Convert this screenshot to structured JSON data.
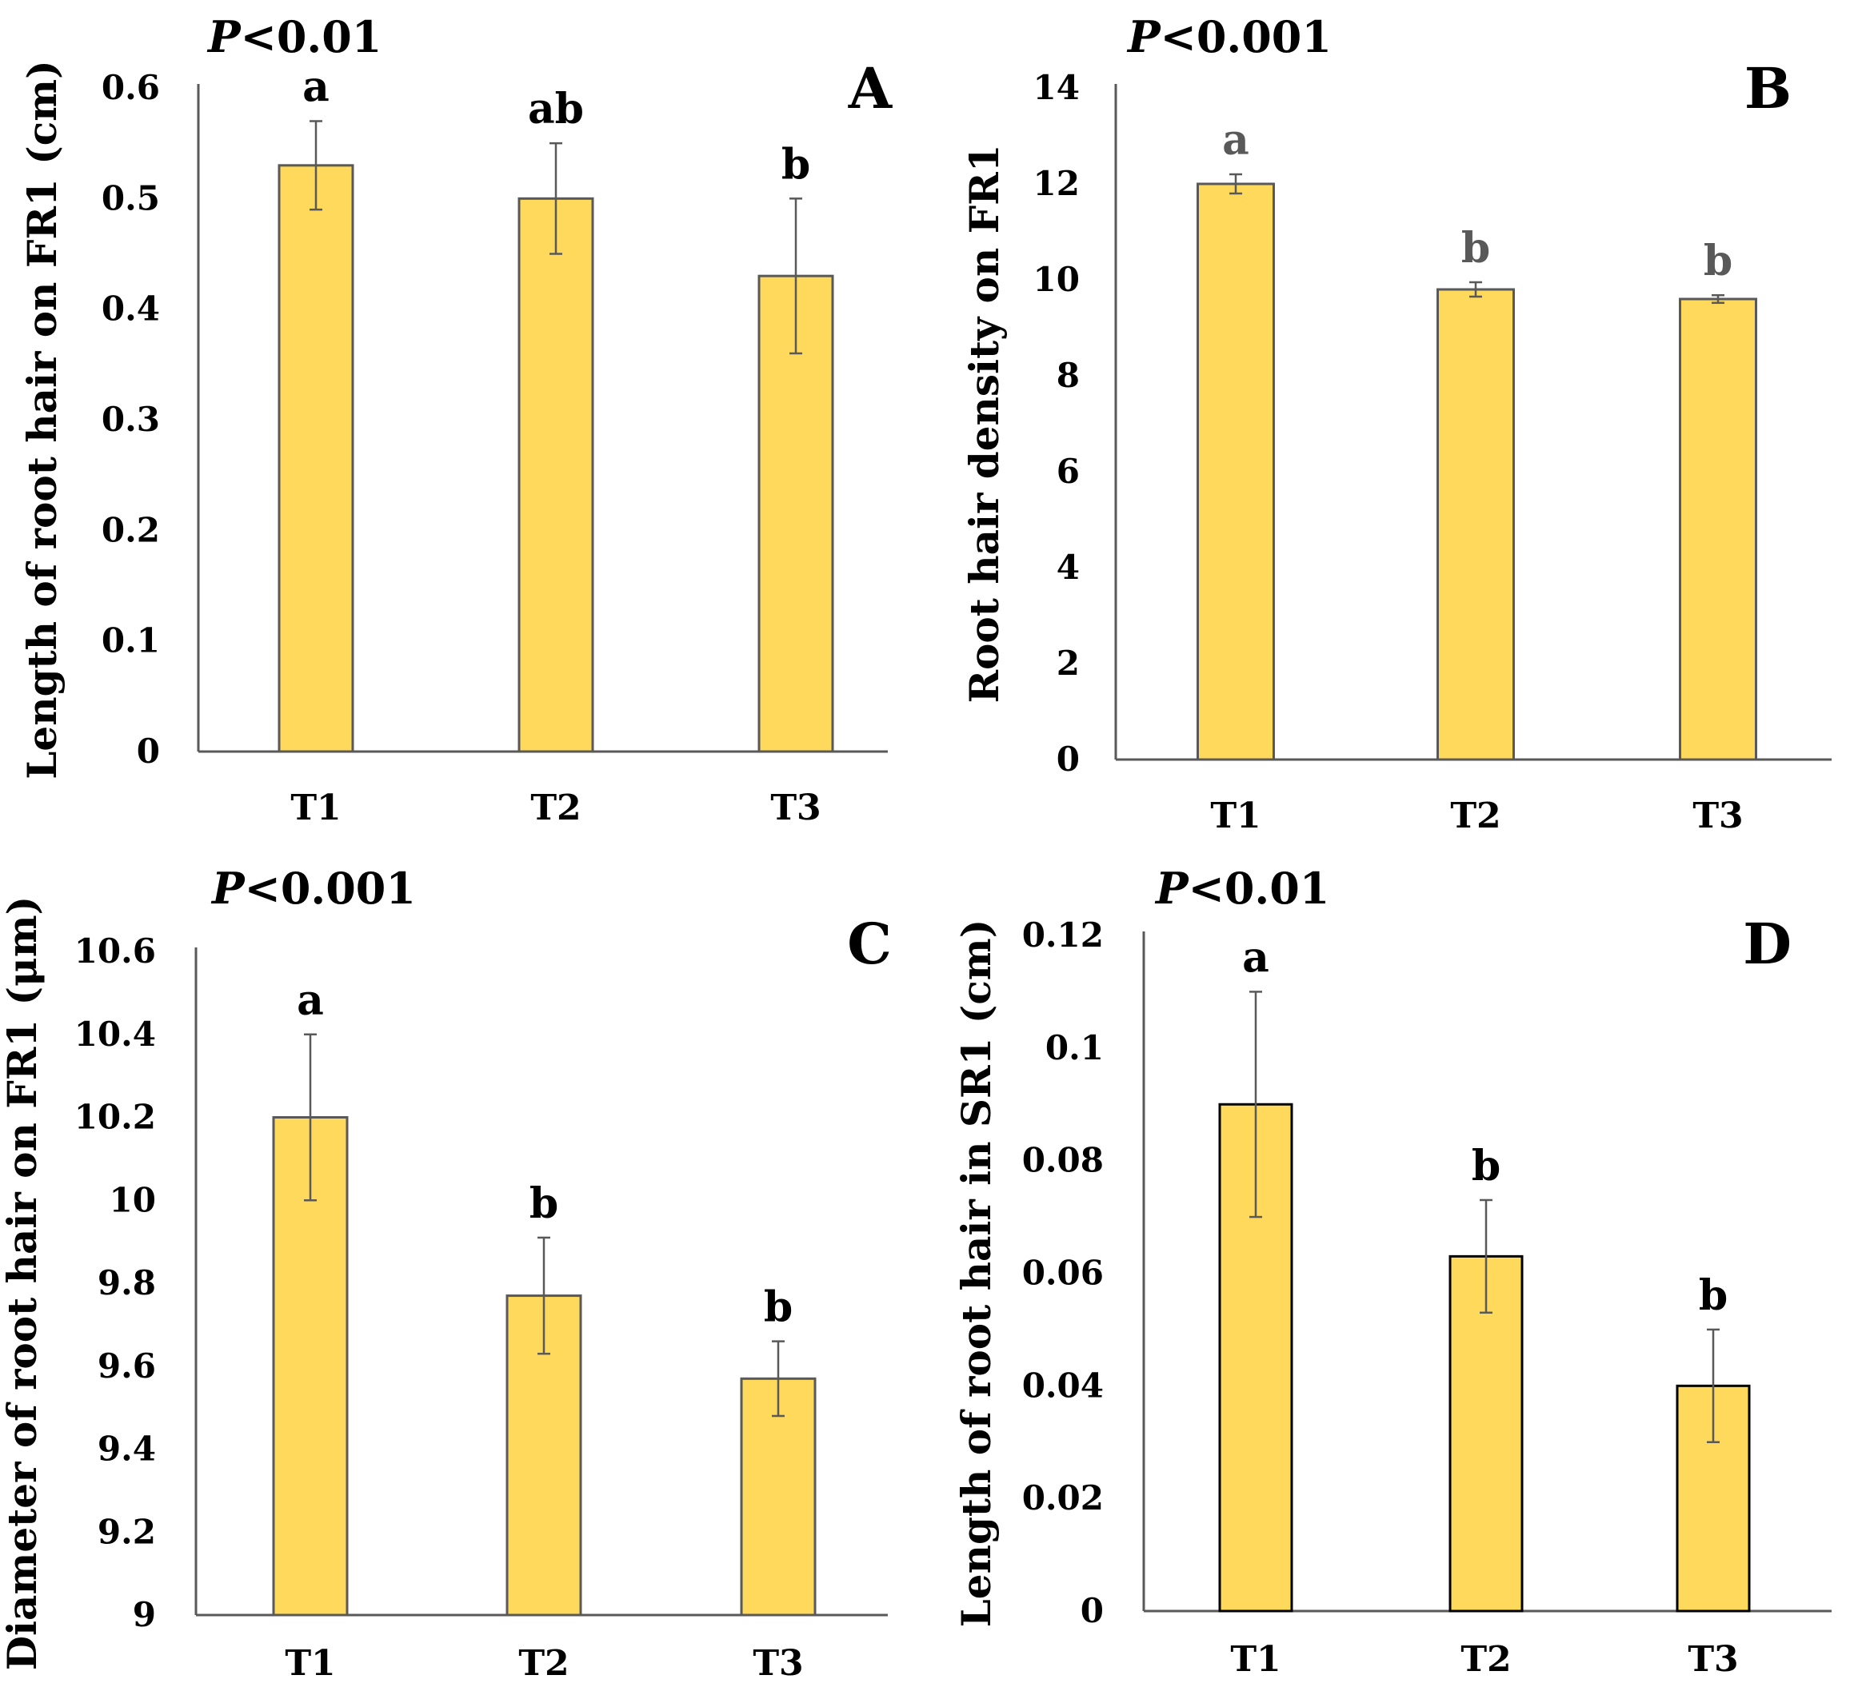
{
  "colors": {
    "bar_fill": "#FFD95C",
    "axis": "#595959",
    "text": "#000000"
  },
  "chart_data": [
    {
      "type": "bar",
      "panel": "A",
      "p_prefix": "P",
      "p_suffix": "<0.01",
      "ylabel": "Length of root hair on FR1 (cm)",
      "xlabel": "",
      "categories": [
        "T1",
        "T2",
        "T3"
      ],
      "values": [
        0.53,
        0.5,
        0.43
      ],
      "errors": [
        0.04,
        0.05,
        0.07
      ],
      "significance": [
        "a",
        "ab",
        "b"
      ],
      "ylim": [
        0,
        0.6
      ],
      "yticks": [
        "0",
        "0.1",
        "0.2",
        "0.3",
        "0.4",
        "0.5",
        "0.6"
      ],
      "grid": false,
      "bar_border": "#595959",
      "significance_color": "#000000"
    },
    {
      "type": "bar",
      "panel": "B",
      "p_prefix": "P",
      "p_suffix": "<0.001",
      "ylabel": "Root hair density on FR1",
      "xlabel": "",
      "categories": [
        "T1",
        "T2",
        "T3"
      ],
      "values": [
        12.0,
        9.8,
        9.6
      ],
      "errors": [
        0.2,
        0.15,
        0.08
      ],
      "significance": [
        "a",
        "b",
        "b"
      ],
      "ylim": [
        0,
        14
      ],
      "yticks": [
        "0",
        "2",
        "4",
        "6",
        "8",
        "10",
        "12",
        "14"
      ],
      "grid": false,
      "bar_border": "#595959",
      "significance_color": "#595959"
    },
    {
      "type": "bar",
      "panel": "C",
      "p_prefix": "P",
      "p_suffix": "<0.001",
      "ylabel": "Diameter of root hair on FR1 (μm)",
      "xlabel": "",
      "categories": [
        "T1",
        "T2",
        "T3"
      ],
      "values": [
        10.2,
        9.77,
        9.57
      ],
      "errors": [
        0.2,
        0.14,
        0.09
      ],
      "significance": [
        "a",
        "b",
        "b"
      ],
      "ylim": [
        9,
        10.6
      ],
      "yticks": [
        "9",
        "9.2",
        "9.4",
        "9.6",
        "9.8",
        "10",
        "10.2",
        "10.4",
        "10.6"
      ],
      "grid": false,
      "bar_border": "#595959",
      "significance_color": "#000000"
    },
    {
      "type": "bar",
      "panel": "D",
      "p_prefix": "P",
      "p_suffix": "<0.01",
      "ylabel": "Length of root hair in SR1 (cm)",
      "xlabel": "",
      "categories": [
        "T1",
        "T2",
        "T3"
      ],
      "values": [
        0.09,
        0.063,
        0.04
      ],
      "errors": [
        0.02,
        0.01,
        0.01
      ],
      "significance": [
        "a",
        "b",
        "b"
      ],
      "ylim": [
        0,
        0.12
      ],
      "yticks": [
        "0",
        "0.02",
        "0.04",
        "0.06",
        "0.08",
        "0.1",
        "0.12"
      ],
      "grid": false,
      "bar_border": "#000000",
      "significance_color": "#000000"
    }
  ]
}
